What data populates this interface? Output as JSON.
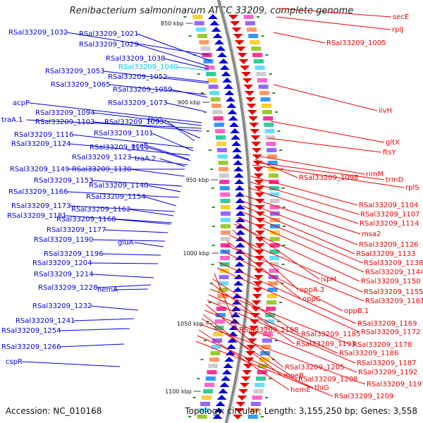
{
  "title": "Renibacterium salmoninarum ATCC 33209, complete genome",
  "footer": {
    "accession": "Accession: NC_010168",
    "topology": "Topology: circular; Length: 3,155,250 bp; Genes: 3,558"
  },
  "ticks": [
    "850 kbp",
    "900 kbp",
    "950 kbp",
    "1000 kbp",
    "1050 kbp",
    "1100 kbp"
  ],
  "colors": {
    "forward": "#0000dd",
    "reverse": "#ee0000",
    "highlight": "#00c8ee",
    "backbone": "#888888"
  },
  "left_labels": [
    "RSal33209_1032",
    "RSal33209_1021",
    "RSal33209_1029",
    "RSal33209_1038",
    "RSal33209_1040",
    "RSal33209_1053",
    "RSal33209_1052",
    "RSal33209_1065",
    "RSal33209_1059",
    "RSal33209_1073",
    "acpP",
    "RSal33209_1094",
    "traA.1",
    "RSal33209_1103",
    "RSal33209_1093",
    "thiC",
    "RSal33209_1116",
    "RSal33209_1101",
    "RSal33209_1124",
    "RSal33209_1111",
    "aceE",
    "RSal33209_1123",
    "traA.2",
    "RSal33209_1149",
    "RSal33209_1130",
    "RSal33209_1153",
    "RSal33209_1140",
    "RSal33209_1166",
    "RSal33209_1154",
    "RSal33209_1173",
    "RSal33209_1162",
    "RSal33209_1181",
    "RSal33209_1168",
    "RSal33209_1177",
    "RSal33209_1190",
    "gluA",
    "RSal33209_1196",
    "RSal33209_1204",
    "RSal33209_1214",
    "RSal33209_1228",
    "hemA",
    "RSal33209_1232",
    "RSal33209_1241",
    "RSal33209_1254",
    "RSal33209_1266",
    "cspR"
  ],
  "right_labels": [
    "secE",
    "rplJ",
    "RSal33209_1005",
    "ilvH",
    "gltX",
    "ftsY",
    "rimM",
    "RSal33209_1098",
    "trmD",
    "rplS",
    "RSal33209_1104",
    "RSal33209_1107",
    "RSal33209_1114",
    "msa2",
    "RSal33209_1126",
    "RSal33209_1133",
    "RSal33209_1138",
    "RSal33209_1144",
    "ispH",
    "RSal33209_1150",
    "oppA.3",
    "RSal33209_1155",
    "oppC",
    "RSal33209_1161",
    "oppB.1",
    "RSal33209_1169",
    "RSal33209_1172",
    "RSal33209_1198",
    "RSal33209_1185",
    "RSal33209_1193",
    "RSal33209_1178",
    "RSal33209_1186",
    "RSal33209_1187",
    "RSal33209_1205",
    "RSal33209_1192",
    "moeB",
    "RSal33209_1208",
    "RSal33209_1197",
    "hemE",
    "thiG",
    "RSal33209_1209"
  ]
}
